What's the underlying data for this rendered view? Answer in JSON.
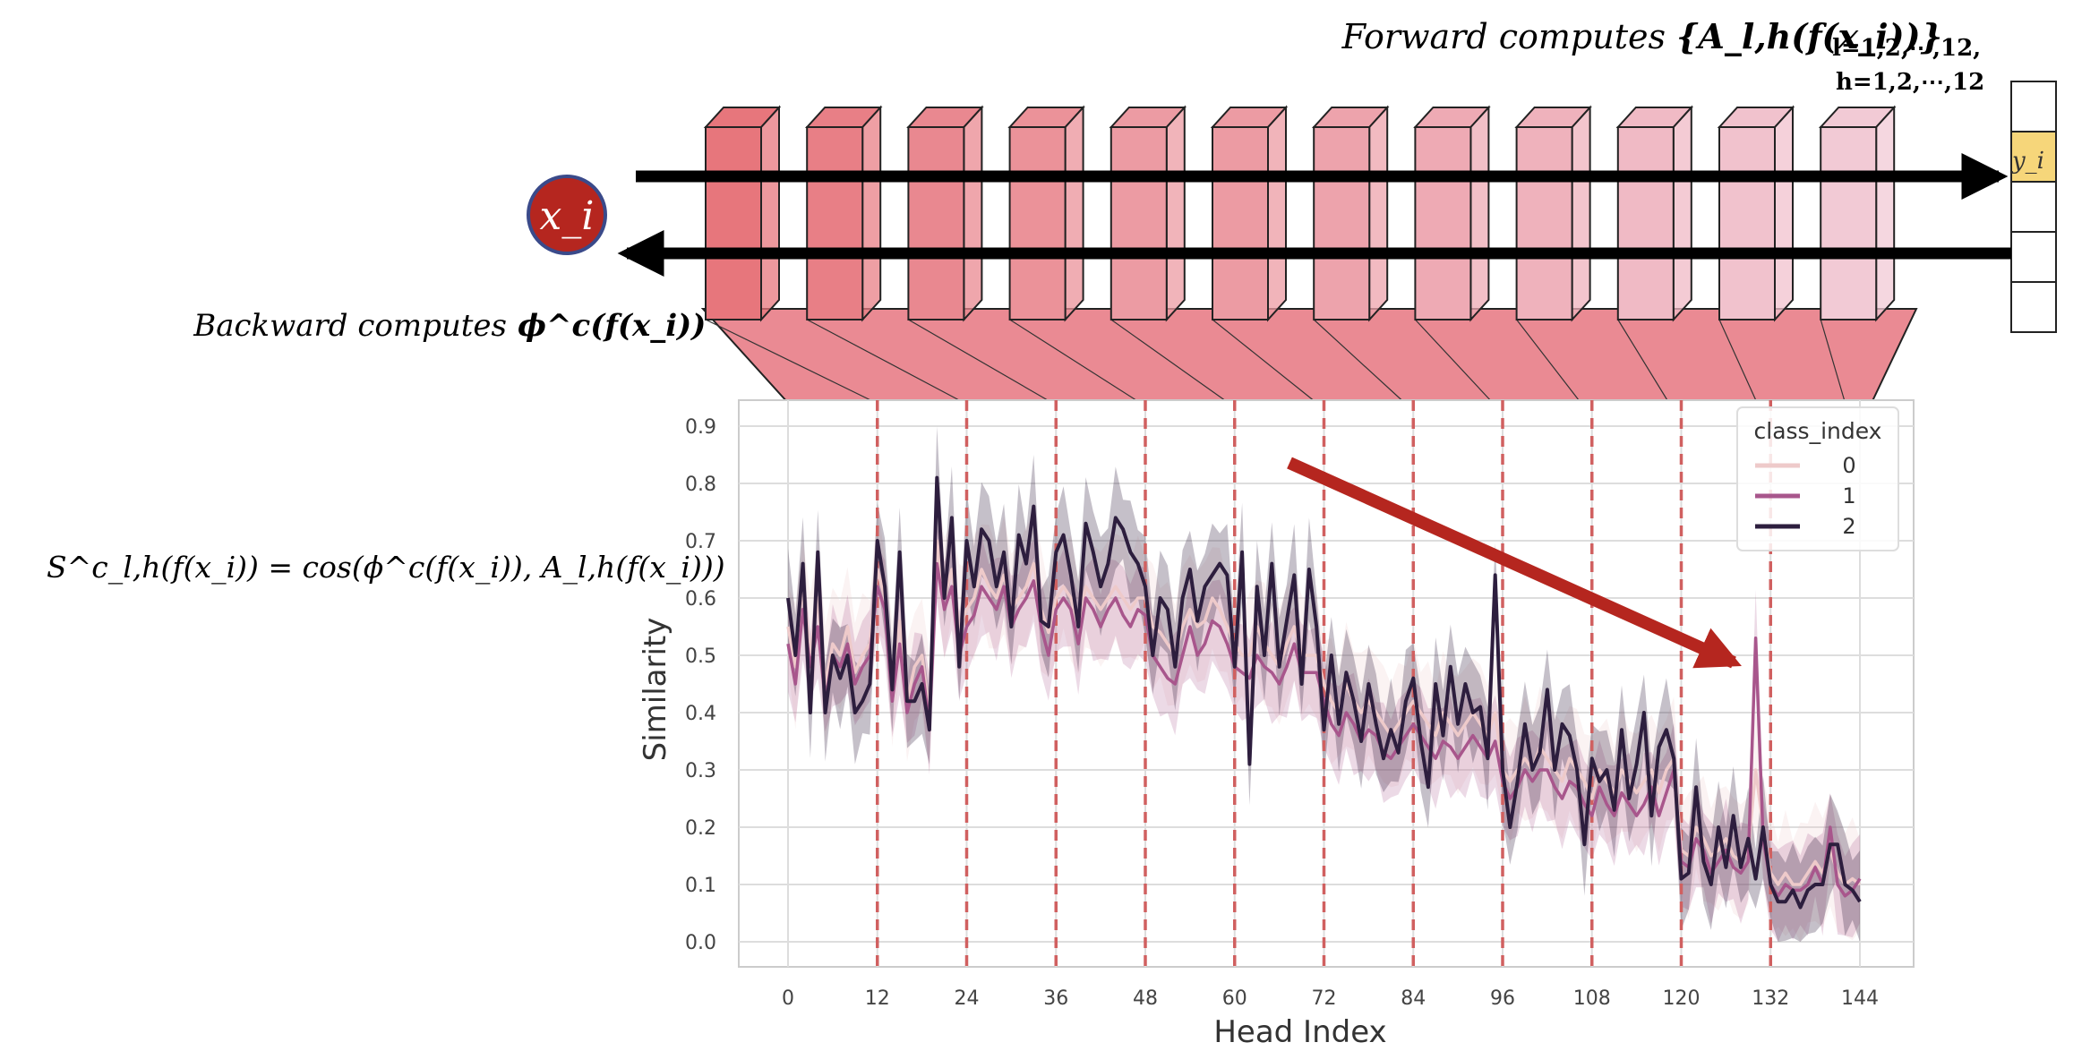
{
  "diagram": {
    "forward_label": "Forward computes",
    "forward_formula": "{A_l,h(f(x_i))}",
    "forward_subscript_1": "l=1,2,⋯,12,",
    "forward_subscript_2": "h=1,2,⋯,12",
    "backward_label": "Backward computes",
    "backward_formula": "ϕ^c(f(x_i))",
    "input_symbol": "x_i",
    "output_symbol": "y_i",
    "similarity_formula": "S^c_l,h(f(x_i)) = cos(ϕ^c(f(x_i)), A_l,h(f(x_i)))",
    "layer_count": 12,
    "output_cells": 5,
    "highlighted_output_cell": 2,
    "colors": {
      "layer_dark": "#e7767c",
      "layer_light": "#f3d2de",
      "input_circle": "#b5261f",
      "output_highlight": "#f6d67a",
      "trend_arrow": "#b5261f",
      "divider": "#d06060"
    }
  },
  "chart_data": {
    "type": "line",
    "xlabel": "Head Index",
    "ylabel": "Similarity",
    "xlim": [
      0,
      144
    ],
    "ylim": [
      0,
      0.9
    ],
    "x_ticks": [
      0,
      12,
      24,
      36,
      48,
      60,
      72,
      84,
      96,
      108,
      120,
      132,
      144
    ],
    "y_ticks": [
      0.0,
      0.1,
      0.2,
      0.3,
      0.4,
      0.5,
      0.6,
      0.7,
      0.8,
      0.9
    ],
    "layer_boundaries": [
      12,
      24,
      36,
      48,
      60,
      72,
      84,
      96,
      108,
      120,
      132
    ],
    "grid": true,
    "legend_title": "class_index",
    "legend_position": "top-right",
    "series": [
      {
        "name": "0",
        "color": "#eecaca",
        "y": [
          0.55,
          0.48,
          0.62,
          0.5,
          0.6,
          0.45,
          0.52,
          0.5,
          0.55,
          0.47,
          0.5,
          0.52,
          0.65,
          0.6,
          0.45,
          0.56,
          0.42,
          0.48,
          0.5,
          0.4,
          0.7,
          0.6,
          0.65,
          0.55,
          0.58,
          0.6,
          0.65,
          0.62,
          0.6,
          0.64,
          0.58,
          0.6,
          0.62,
          0.66,
          0.58,
          0.54,
          0.6,
          0.62,
          0.6,
          0.55,
          0.62,
          0.6,
          0.58,
          0.6,
          0.62,
          0.6,
          0.58,
          0.6,
          0.6,
          0.55,
          0.54,
          0.52,
          0.5,
          0.55,
          0.58,
          0.55,
          0.56,
          0.6,
          0.58,
          0.55,
          0.52,
          0.5,
          0.5,
          0.55,
          0.52,
          0.5,
          0.48,
          0.52,
          0.55,
          0.5,
          0.5,
          0.5,
          0.45,
          0.42,
          0.4,
          0.45,
          0.42,
          0.4,
          0.42,
          0.4,
          0.38,
          0.36,
          0.38,
          0.4,
          0.42,
          0.4,
          0.38,
          0.36,
          0.4,
          0.38,
          0.36,
          0.38,
          0.4,
          0.38,
          0.36,
          0.4,
          0.3,
          0.28,
          0.3,
          0.32,
          0.3,
          0.34,
          0.32,
          0.3,
          0.28,
          0.32,
          0.3,
          0.28,
          0.25,
          0.3,
          0.28,
          0.26,
          0.3,
          0.28,
          0.26,
          0.28,
          0.3,
          0.26,
          0.3,
          0.32,
          0.16,
          0.15,
          0.2,
          0.18,
          0.15,
          0.16,
          0.18,
          0.15,
          0.14,
          0.16,
          0.3,
          0.2,
          0.12,
          0.1,
          0.12,
          0.1,
          0.1,
          0.12,
          0.14,
          0.12,
          0.16,
          0.12,
          0.1,
          0.11,
          0.1
        ]
      },
      {
        "name": "1",
        "color": "#a8568c",
        "y": [
          0.52,
          0.45,
          0.58,
          0.48,
          0.55,
          0.42,
          0.5,
          0.48,
          0.52,
          0.45,
          0.48,
          0.5,
          0.62,
          0.58,
          0.42,
          0.52,
          0.4,
          0.45,
          0.48,
          0.38,
          0.66,
          0.58,
          0.62,
          0.5,
          0.55,
          0.57,
          0.62,
          0.6,
          0.58,
          0.62,
          0.55,
          0.58,
          0.6,
          0.63,
          0.55,
          0.5,
          0.58,
          0.6,
          0.58,
          0.52,
          0.6,
          0.58,
          0.55,
          0.58,
          0.6,
          0.57,
          0.55,
          0.58,
          0.57,
          0.5,
          0.48,
          0.46,
          0.45,
          0.5,
          0.55,
          0.5,
          0.52,
          0.56,
          0.55,
          0.52,
          0.48,
          0.47,
          0.46,
          0.5,
          0.48,
          0.47,
          0.45,
          0.48,
          0.52,
          0.47,
          0.47,
          0.47,
          0.42,
          0.38,
          0.36,
          0.4,
          0.38,
          0.35,
          0.37,
          0.36,
          0.33,
          0.32,
          0.34,
          0.36,
          0.38,
          0.36,
          0.34,
          0.32,
          0.35,
          0.34,
          0.32,
          0.34,
          0.36,
          0.34,
          0.32,
          0.35,
          0.28,
          0.25,
          0.27,
          0.3,
          0.28,
          0.3,
          0.3,
          0.27,
          0.25,
          0.28,
          0.27,
          0.24,
          0.22,
          0.27,
          0.24,
          0.22,
          0.26,
          0.24,
          0.22,
          0.24,
          0.27,
          0.22,
          0.26,
          0.3,
          0.14,
          0.13,
          0.18,
          0.16,
          0.12,
          0.14,
          0.16,
          0.13,
          0.12,
          0.14,
          0.53,
          0.18,
          0.1,
          0.08,
          0.1,
          0.09,
          0.09,
          0.1,
          0.13,
          0.1,
          0.2,
          0.1,
          0.08,
          0.09,
          0.11
        ]
      },
      {
        "name": "2",
        "color": "#2d1e3e",
        "y": [
          0.6,
          0.5,
          0.66,
          0.4,
          0.68,
          0.4,
          0.5,
          0.46,
          0.5,
          0.4,
          0.42,
          0.45,
          0.7,
          0.62,
          0.44,
          0.68,
          0.42,
          0.42,
          0.45,
          0.37,
          0.81,
          0.6,
          0.74,
          0.48,
          0.7,
          0.62,
          0.72,
          0.7,
          0.62,
          0.68,
          0.55,
          0.71,
          0.66,
          0.76,
          0.56,
          0.55,
          0.68,
          0.71,
          0.64,
          0.55,
          0.73,
          0.68,
          0.62,
          0.66,
          0.74,
          0.72,
          0.68,
          0.66,
          0.62,
          0.5,
          0.6,
          0.58,
          0.48,
          0.6,
          0.65,
          0.56,
          0.62,
          0.64,
          0.66,
          0.64,
          0.48,
          0.68,
          0.31,
          0.62,
          0.5,
          0.66,
          0.48,
          0.56,
          0.64,
          0.45,
          0.65,
          0.55,
          0.37,
          0.5,
          0.38,
          0.47,
          0.42,
          0.35,
          0.45,
          0.38,
          0.32,
          0.37,
          0.33,
          0.42,
          0.46,
          0.35,
          0.27,
          0.45,
          0.36,
          0.48,
          0.38,
          0.45,
          0.4,
          0.41,
          0.32,
          0.64,
          0.3,
          0.2,
          0.28,
          0.38,
          0.3,
          0.33,
          0.44,
          0.3,
          0.38,
          0.36,
          0.3,
          0.17,
          0.32,
          0.28,
          0.3,
          0.23,
          0.37,
          0.25,
          0.31,
          0.4,
          0.22,
          0.34,
          0.37,
          0.32,
          0.11,
          0.12,
          0.27,
          0.14,
          0.1,
          0.2,
          0.13,
          0.22,
          0.13,
          0.18,
          0.11,
          0.2,
          0.1,
          0.07,
          0.07,
          0.09,
          0.06,
          0.09,
          0.1,
          0.1,
          0.17,
          0.17,
          0.1,
          0.09,
          0.07
        ]
      }
    ]
  }
}
